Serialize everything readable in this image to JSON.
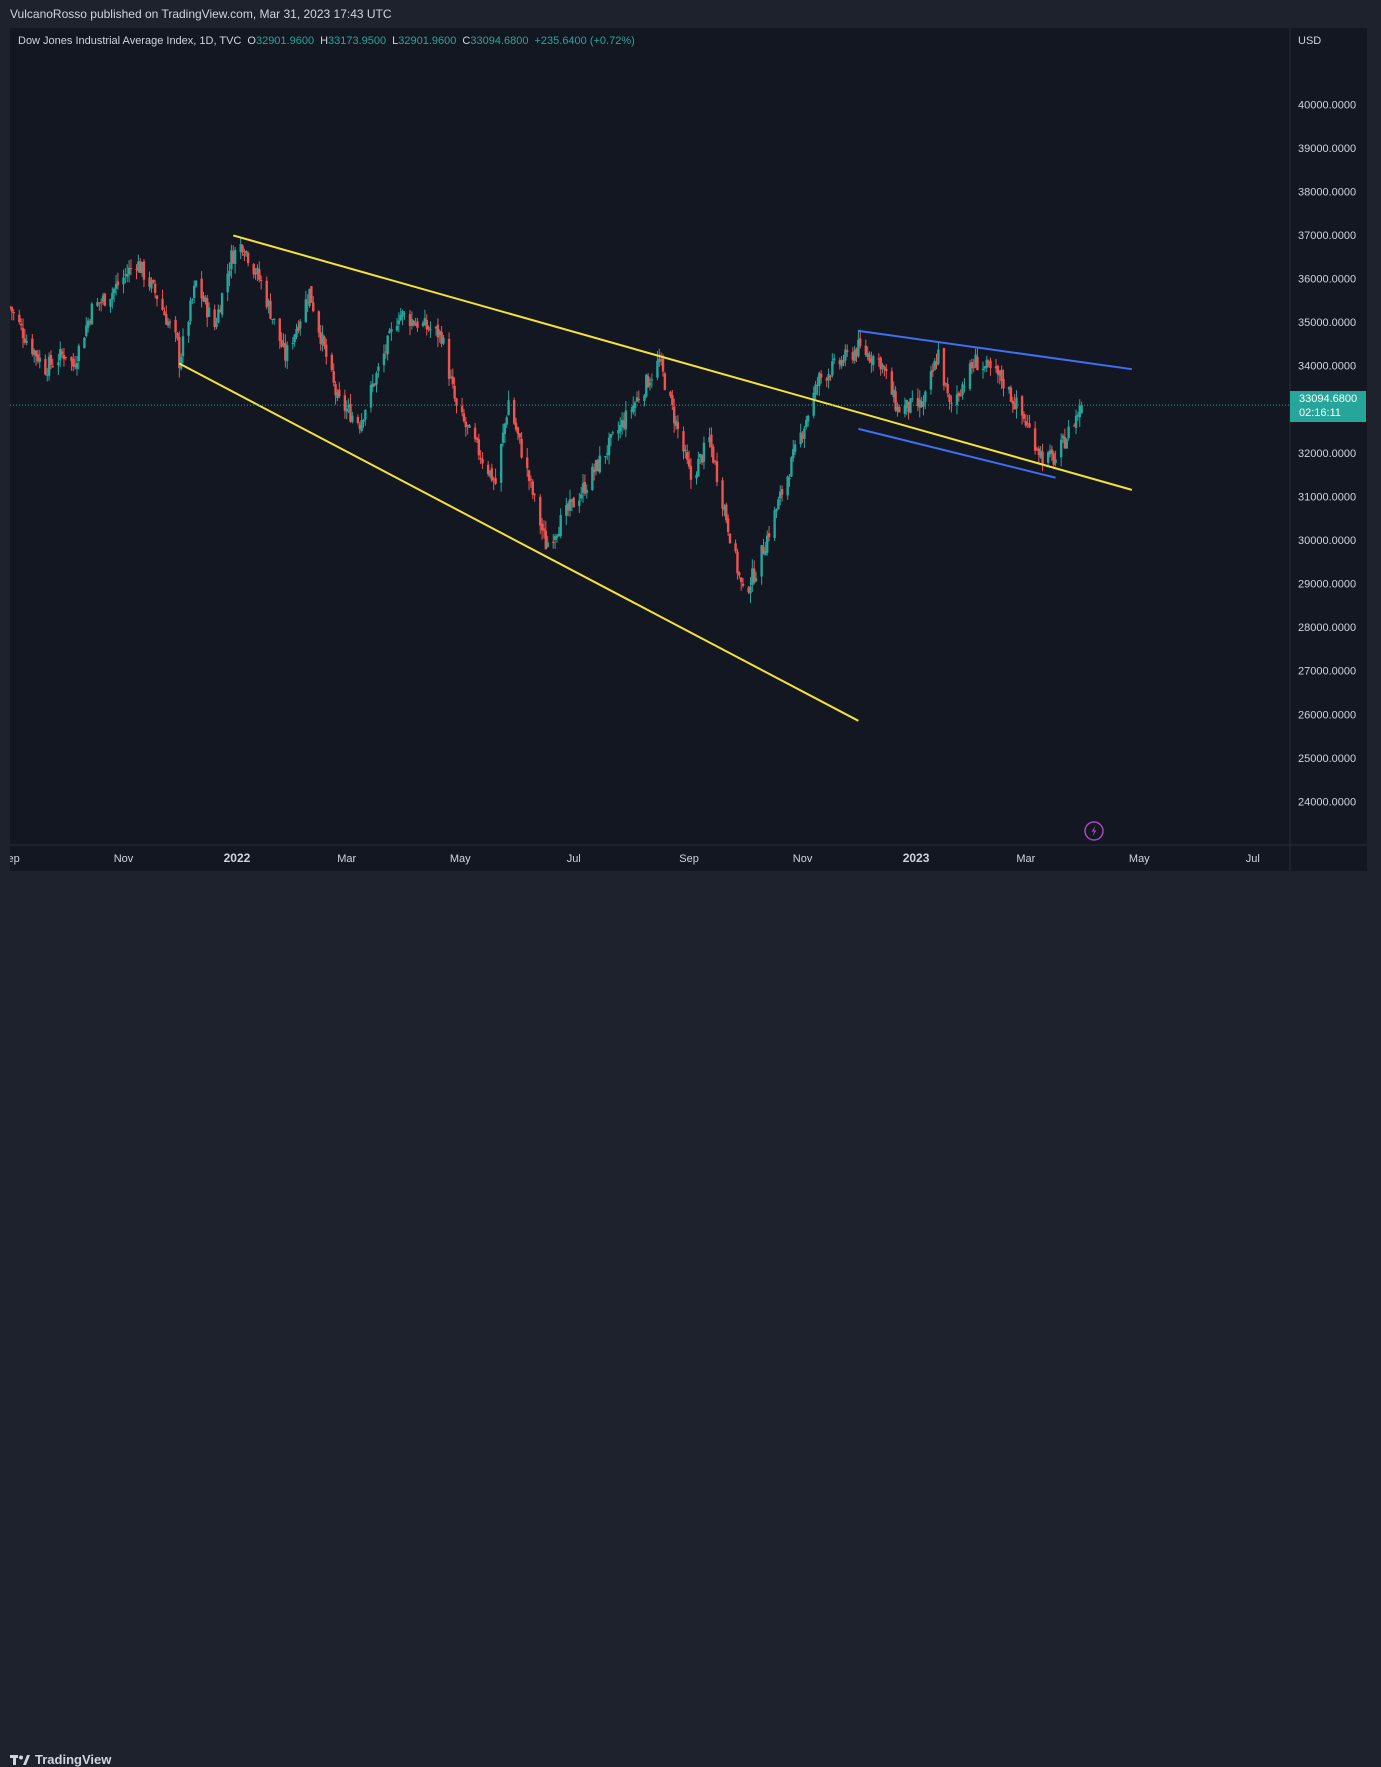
{
  "header": {
    "publisher": "VulcanoRosso published on TradingView.com, Mar 31, 2023 17:43 UTC"
  },
  "legend": {
    "symbol": "Dow Jones Industrial Average Index, 1D, TVC",
    "open_label": "O",
    "open": "32901.9600",
    "high_label": "H",
    "high": "33173.9500",
    "low_label": "L",
    "low": "32901.9600",
    "close_label": "C",
    "close": "33094.6800",
    "change": "+235.6400 (+0.72%)"
  },
  "price_axis": {
    "currency": "USD",
    "current_price": "33094.6800",
    "countdown": "02:16:11"
  },
  "footer": {
    "brand": "TradingView"
  },
  "colors": {
    "background": "#131722",
    "up": "#26a69a",
    "down": "#ef5350",
    "wedge_lines": "#f5e13c",
    "channel_lines": "#3f6ff2"
  },
  "chart_data": {
    "type": "candlestick",
    "title": "Dow Jones Industrial Average Index, 1D, TVC",
    "ylim": [
      23000,
      41750
    ],
    "y_ticks": [
      "24000.0000",
      "25000.0000",
      "26000.0000",
      "27000.0000",
      "28000.0000",
      "29000.0000",
      "30000.0000",
      "31000.0000",
      "32000.0000",
      "33000.0000",
      "34000.0000",
      "35000.0000",
      "36000.0000",
      "37000.0000",
      "38000.0000",
      "39000.0000",
      "40000.0000"
    ],
    "x_ticks": [
      {
        "label": "Sep",
        "date": "2021-09-01",
        "bold": false
      },
      {
        "label": "Nov",
        "date": "2021-11-01",
        "bold": false
      },
      {
        "label": "2022",
        "date": "2022-01-01",
        "bold": true
      },
      {
        "label": "Mar",
        "date": "2022-03-01",
        "bold": false
      },
      {
        "label": "May",
        "date": "2022-05-01",
        "bold": false
      },
      {
        "label": "Jul",
        "date": "2022-07-01",
        "bold": false
      },
      {
        "label": "Sep",
        "date": "2022-09-01",
        "bold": false
      },
      {
        "label": "Nov",
        "date": "2022-11-01",
        "bold": false
      },
      {
        "label": "2023",
        "date": "2023-01-01",
        "bold": true
      },
      {
        "label": "Mar",
        "date": "2023-03-01",
        "bold": false
      },
      {
        "label": "May",
        "date": "2023-05-01",
        "bold": false
      },
      {
        "label": "Jul",
        "date": "2023-07-01",
        "bold": false
      }
    ],
    "x_range": [
      "2021-09-01",
      "2023-07-21"
    ],
    "price_path": [
      [
        "2021-09-01",
        35350
      ],
      [
        "2021-09-10",
        34600
      ],
      [
        "2021-09-20",
        33950
      ],
      [
        "2021-10-01",
        34300
      ],
      [
        "2021-10-05",
        34000
      ],
      [
        "2021-10-15",
        35300
      ],
      [
        "2021-10-26",
        35700
      ],
      [
        "2021-11-08",
        36400
      ],
      [
        "2021-11-19",
        35600
      ],
      [
        "2021-11-30",
        34500
      ],
      [
        "2021-12-01",
        34100
      ],
      [
        "2021-12-10",
        35900
      ],
      [
        "2021-12-20",
        34900
      ],
      [
        "2021-12-29",
        36500
      ],
      [
        "2022-01-04",
        36800
      ],
      [
        "2022-01-14",
        35900
      ],
      [
        "2022-01-27",
        34200
      ],
      [
        "2022-02-09",
        35700
      ],
      [
        "2022-02-24",
        33200
      ],
      [
        "2022-03-08",
        32700
      ],
      [
        "2022-03-29",
        35200
      ],
      [
        "2022-04-21",
        34700
      ],
      [
        "2022-04-29",
        33000
      ],
      [
        "2022-05-20",
        31300
      ],
      [
        "2022-05-27",
        33200
      ],
      [
        "2022-06-16",
        29900
      ],
      [
        "2022-07-08",
        31300
      ],
      [
        "2022-07-29",
        32800
      ],
      [
        "2022-08-16",
        34100
      ],
      [
        "2022-09-02",
        31400
      ],
      [
        "2022-09-12",
        32300
      ],
      [
        "2022-09-30",
        28750
      ],
      [
        "2022-10-07",
        29300
      ],
      [
        "2022-10-21",
        31100
      ],
      [
        "2022-11-10",
        33700
      ],
      [
        "2022-12-01",
        34400
      ],
      [
        "2022-12-13",
        34100
      ],
      [
        "2022-12-22",
        33000
      ],
      [
        "2023-01-05",
        33100
      ],
      [
        "2023-01-13",
        34300
      ],
      [
        "2023-01-19",
        33050
      ],
      [
        "2023-02-02",
        34100
      ],
      [
        "2023-02-16",
        33700
      ],
      [
        "2023-03-01",
        32700
      ],
      [
        "2023-03-10",
        31900
      ],
      [
        "2023-03-17",
        31850
      ],
      [
        "2023-03-31",
        33094.68
      ]
    ],
    "annotations": [
      {
        "name": "wedge-upper-line",
        "color": "yellow",
        "from": [
          "2021-12-30",
          36990
        ],
        "to": [
          "2023-04-27",
          31150
        ]
      },
      {
        "name": "wedge-lower-line",
        "color": "yellow",
        "from": [
          "2021-12-01",
          34050
        ],
        "to": [
          "2022-12-01",
          25850
        ]
      },
      {
        "name": "channel-upper-line",
        "color": "blue",
        "from": [
          "2022-12-01",
          34800
        ],
        "to": [
          "2023-04-27",
          33920
        ]
      },
      {
        "name": "channel-lower-line",
        "color": "blue",
        "from": [
          "2022-12-01",
          32550
        ],
        "to": [
          "2023-03-17",
          31430
        ]
      }
    ]
  }
}
